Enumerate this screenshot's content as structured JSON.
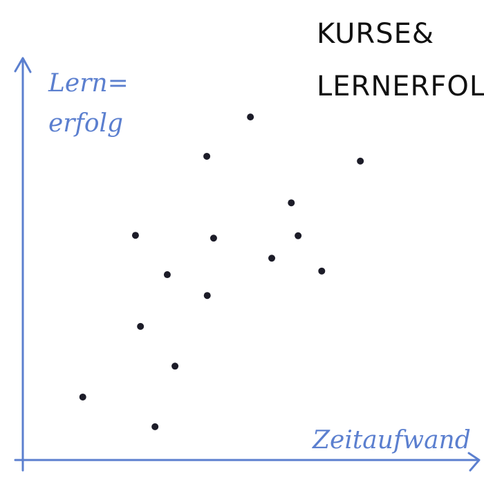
{
  "chart_data": {
    "type": "scatter",
    "title": [
      "KURSE&",
      "LERNERFOLG"
    ],
    "y_label": [
      "Lern=",
      "erfolg"
    ],
    "x_label": "Zeitaufwand",
    "x": [
      13.2,
      29.1,
      25.9,
      33.5,
      31.8,
      24.8,
      40.6,
      42.0,
      40.5,
      50.1,
      54.8,
      59.1,
      60.6,
      65.8,
      74.3
    ],
    "values": [
      15.7,
      8.3,
      33.3,
      23.4,
      46.2,
      56.0,
      41.0,
      55.3,
      75.7,
      85.5,
      50.3,
      64.1,
      55.9,
      47.1,
      74.5
    ],
    "xlim": [
      0,
      100
    ],
    "ylim": [
      0,
      100
    ],
    "color": "#1c1c28",
    "axis_color": "#5b7fcf"
  }
}
